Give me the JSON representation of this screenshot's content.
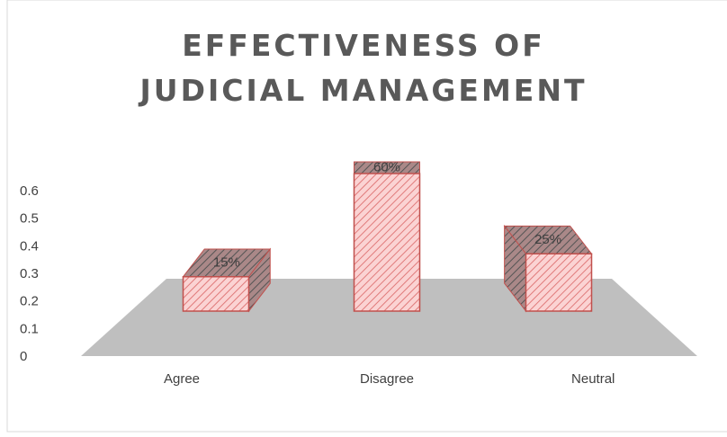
{
  "chart_data": {
    "type": "bar3d",
    "title": "EFFECTIVENESS OF JUDICIAL MANAGEMENT",
    "categories": [
      "Agree",
      "Disagree",
      "Neutral"
    ],
    "values": [
      0.15,
      0.6,
      0.25
    ],
    "value_labels": [
      "15%",
      "60%",
      "25%"
    ],
    "color": "#f4b6b6",
    "ylim": [
      0,
      0.6
    ],
    "yticks": [
      0,
      0.1,
      0.2,
      0.3,
      0.4,
      0.5,
      0.6
    ]
  }
}
